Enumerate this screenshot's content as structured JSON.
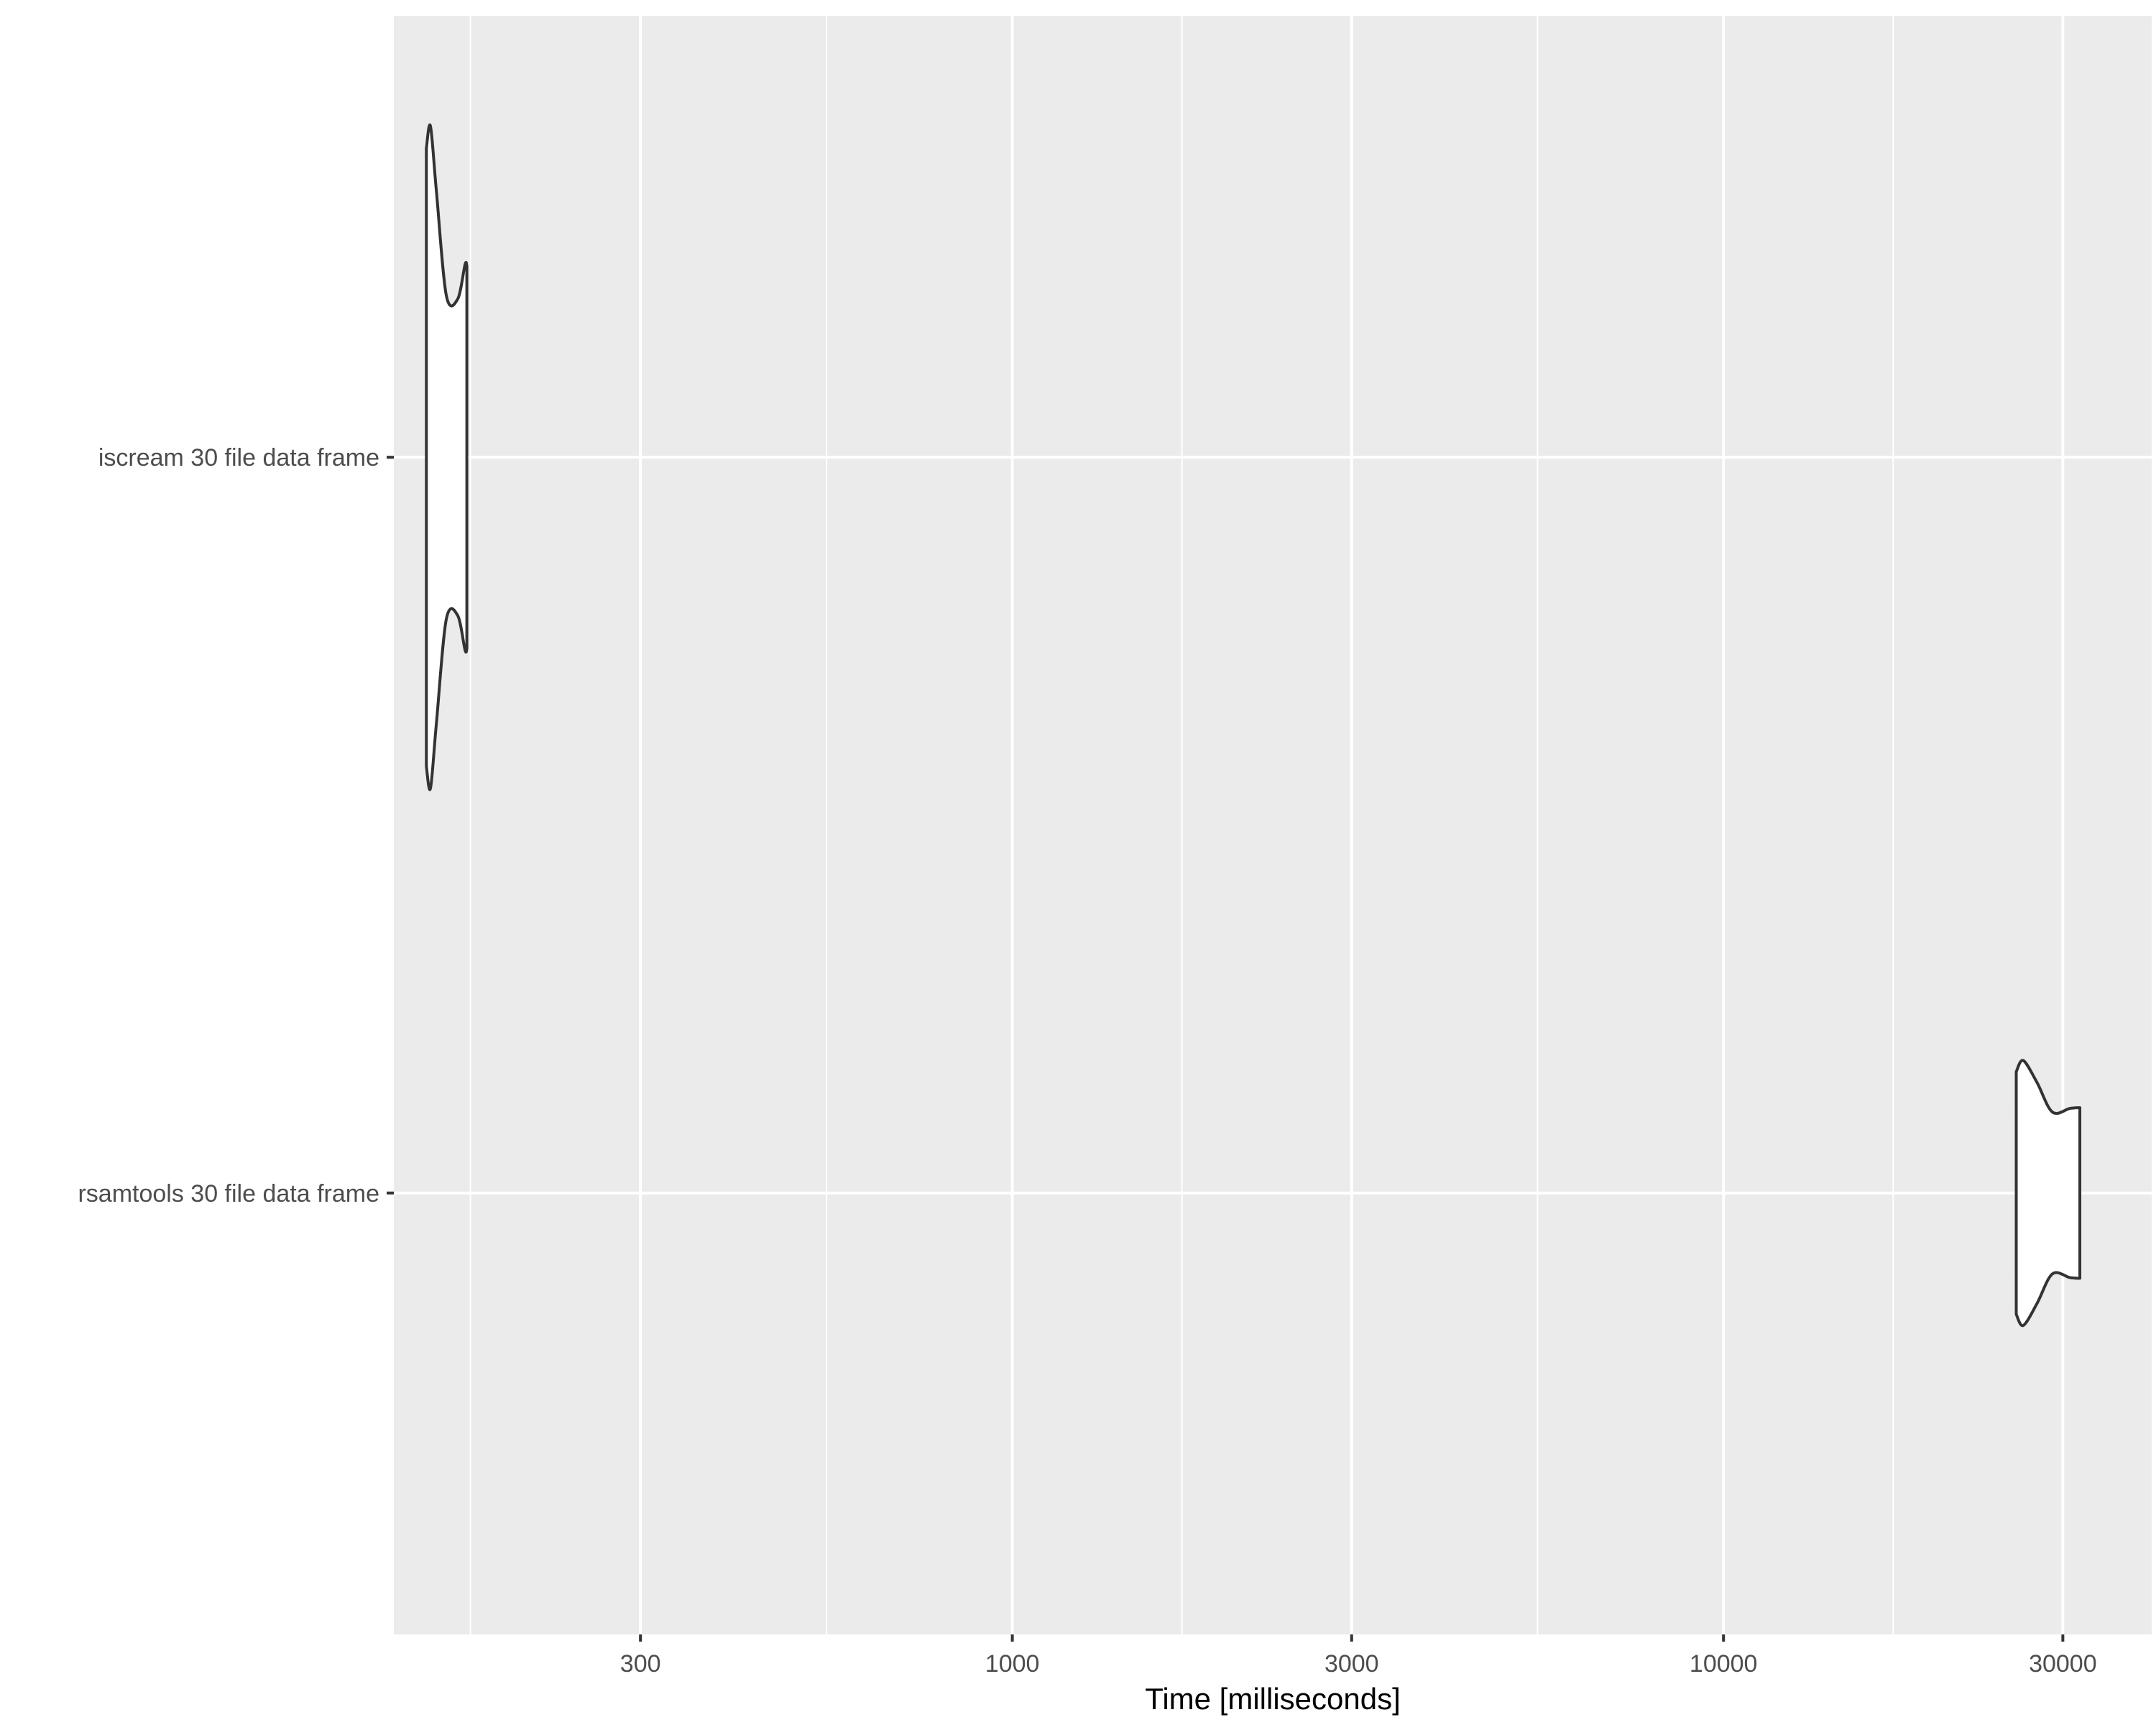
{
  "chart_data": {
    "type": "violin",
    "orientation": "horizontal",
    "title": "",
    "xlabel": "Time [milliseconds]",
    "ylabel": "",
    "x_scale": "log10",
    "xlim": [
      135,
      40000
    ],
    "x_ticks": [
      300,
      1000,
      3000,
      10000,
      30000
    ],
    "x_tick_labels": [
      "300",
      "1000",
      "3000",
      "10000",
      "30000"
    ],
    "x_minor_gridlines": [
      173,
      548,
      1732,
      5477,
      17320
    ],
    "categories": [
      "iscream 30 file data frame",
      "rsamtools 30 file data frame"
    ],
    "grid": true,
    "legend": "none",
    "colors": {
      "panel_background": "#ebebeb",
      "grid": "#ffffff",
      "violin_fill": "#ffffff",
      "violin_outline": "#333333",
      "tick_label": "#4d4d4d",
      "axis_title": "#000000"
    },
    "series": [
      {
        "category": "iscream 30 file data frame",
        "density_profile": [
          {
            "x": 150,
            "half_width": 0.42
          },
          {
            "x": 152,
            "half_width": 0.45
          },
          {
            "x": 155,
            "half_width": 0.36
          },
          {
            "x": 160,
            "half_width": 0.22
          },
          {
            "x": 166,
            "half_width": 0.215
          },
          {
            "x": 170,
            "half_width": 0.262
          },
          {
            "x": 171,
            "half_width": 0.26
          }
        ]
      },
      {
        "category": "rsamtools 30 file data frame",
        "density_profile": [
          {
            "x": 25800,
            "half_width": 0.165
          },
          {
            "x": 26400,
            "half_width": 0.18
          },
          {
            "x": 27600,
            "half_width": 0.15
          },
          {
            "x": 29000,
            "half_width": 0.11
          },
          {
            "x": 30700,
            "half_width": 0.115
          },
          {
            "x": 31700,
            "half_width": 0.116
          }
        ]
      }
    ]
  }
}
